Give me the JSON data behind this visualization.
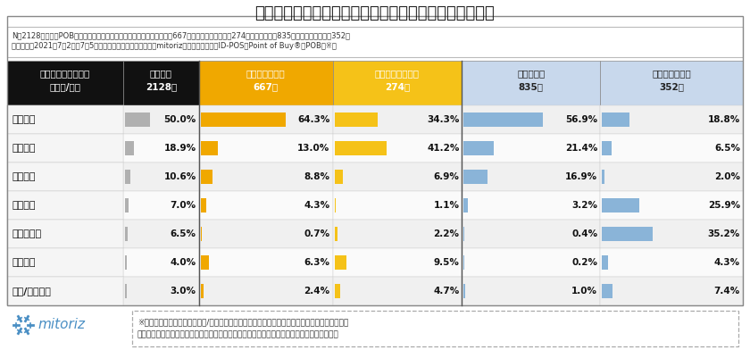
{
  "title": "図表１）４チェーンにおけるメーン利用者の居住エリア",
  "note_line1": "N＝2128人、全国POB会員男女（メーン利用チェーン：マツモトキヨシ667人、ココカラファイン274人、ウエルシア835人、ツルハドラッグ352人",
  "note_line2": "調査期間：2021年7月2日～7月5日　インターネットリサーチ　mitoriz調べ　マルチプルID-POS「Point of Buy®（POB）※」",
  "header_row1": [
    "メーン利用チェーン",
    "４社平均",
    "マツモトキヨシ",
    "ココカラファイン",
    "ウエルシア",
    "ツルハドラッグ"
  ],
  "header_row2": [
    "エリア/人数",
    "2128人",
    "667人",
    "274人",
    "835人",
    "352人"
  ],
  "header_bg": [
    "#111111",
    "#111111",
    "#f0a800",
    "#f5c218",
    "#c8d8ec",
    "#c8d8ec"
  ],
  "header_fg": [
    "#ffffff",
    "#ffffff",
    "#ffffff",
    "#ffffff",
    "#222222",
    "#222222"
  ],
  "rows": [
    {
      "label": "関東地方",
      "avg": 50.0,
      "matsukiyo": 64.3,
      "cocokara": 34.3,
      "welcia": 56.9,
      "tsuruha": 18.8
    },
    {
      "label": "関西地方",
      "avg": 18.9,
      "matsukiyo": 13.0,
      "cocokara": 41.2,
      "welcia": 21.4,
      "tsuruha": 6.5
    },
    {
      "label": "中部地方",
      "avg": 10.6,
      "matsukiyo": 8.8,
      "cocokara": 6.9,
      "welcia": 16.9,
      "tsuruha": 2.0
    },
    {
      "label": "東北地方",
      "avg": 7.0,
      "matsukiyo": 4.3,
      "cocokara": 1.1,
      "welcia": 3.2,
      "tsuruha": 25.9
    },
    {
      "label": "北海道地方",
      "avg": 6.5,
      "matsukiyo": 0.7,
      "cocokara": 2.2,
      "welcia": 0.4,
      "tsuruha": 35.2
    },
    {
      "label": "九州地方",
      "avg": 4.0,
      "matsukiyo": 6.3,
      "cocokara": 9.5,
      "welcia": 0.2,
      "tsuruha": 4.3
    },
    {
      "label": "中国/四国地方",
      "avg": 3.0,
      "matsukiyo": 2.4,
      "cocokara": 4.7,
      "welcia": 1.0,
      "tsuruha": 7.4
    }
  ],
  "bar_colors": [
    "#b0b0b0",
    "#f0a800",
    "#f5c218",
    "#8ab4d8",
    "#8ab4d8"
  ],
  "max_val": 70.0,
  "footer_note_line1": "※全国の消費者から実際に購入/利用したレシートを収集し、ブランドカテゴリや利用サービス、",
  "footer_note_line2": "実際の飲食店ごとのレシートを通して集計したマルチプルリテール購買データのデータベース",
  "mitoriz_text": "mitoriz",
  "mitoriz_color": "#4a8fc4"
}
